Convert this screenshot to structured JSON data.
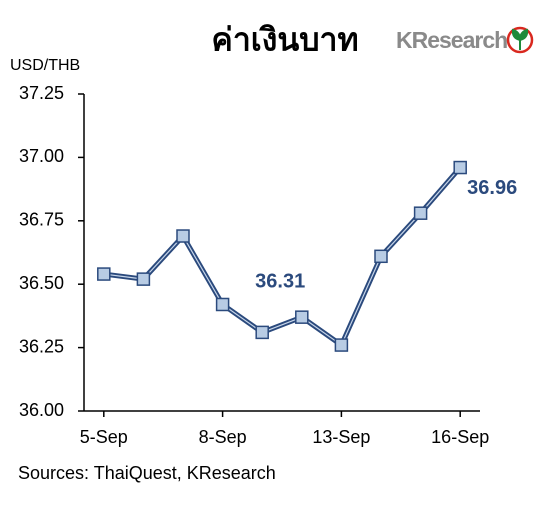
{
  "chart_data": {
    "type": "line",
    "title": "ค่าเงินบาท",
    "brand": "KResearch",
    "y_label": "USD/THB",
    "source": "Sources: ThaiQuest, KResearch",
    "categories": [
      "5-Sep",
      null,
      null,
      "8-Sep",
      null,
      null,
      "13-Sep",
      null,
      null,
      "16-Sep"
    ],
    "series": [
      {
        "name": "USD/THB",
        "color": "#2b4a7d",
        "values": [
          36.54,
          36.52,
          36.69,
          36.42,
          36.31,
          36.37,
          36.26,
          36.61,
          36.78,
          36.96
        ],
        "value_labels": [
          null,
          null,
          null,
          null,
          "36.31",
          null,
          null,
          null,
          null,
          "36.96"
        ]
      }
    ],
    "ylim": [
      36.0,
      37.25
    ],
    "yticks": [
      {
        "value": 36.0,
        "label": "36.00"
      },
      {
        "value": 36.25,
        "label": "36.25"
      },
      {
        "value": 36.5,
        "label": "36.50"
      },
      {
        "value": 36.75,
        "label": "36.75"
      },
      {
        "value": 37.0,
        "label": "37.00"
      },
      {
        "value": 37.25,
        "label": "37.25"
      }
    ],
    "grid": false
  }
}
